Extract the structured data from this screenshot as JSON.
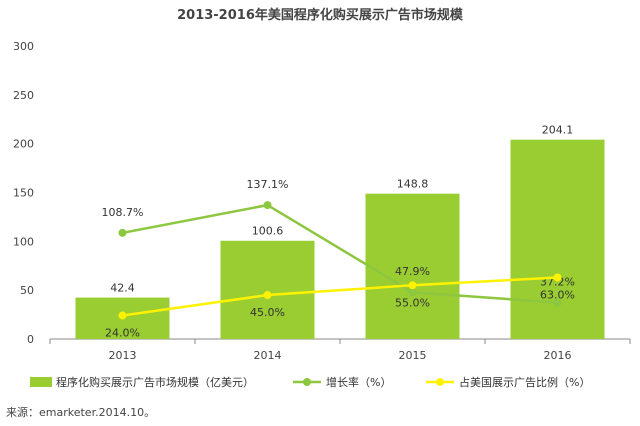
{
  "chart_data": {
    "type": "bar",
    "title": "2013-2016年美国程序化购买展示广告市场规模",
    "categories": [
      "2013",
      "2014",
      "2015",
      "2016"
    ],
    "ylim": [
      0,
      300
    ],
    "yticks": [
      "0",
      "50",
      "100",
      "150",
      "200",
      "250",
      "300"
    ],
    "grid": false,
    "legend_position": "bottom",
    "series": [
      {
        "name": "程序化购买展示广告市场规模（亿美元）",
        "type": "bar",
        "color": "#9ACD32",
        "values": [
          42.4,
          100.6,
          148.8,
          204.1
        ],
        "labels": [
          "42.4",
          "100.6",
          "148.8",
          "204.1"
        ]
      },
      {
        "name": "增长率（%）",
        "type": "line",
        "color": "#8DC63F",
        "values": [
          108.7,
          137.1,
          47.9,
          37.2
        ],
        "labels": [
          "108.7%",
          "137.1%",
          "47.9%",
          "37.2%"
        ]
      },
      {
        "name": "占美国展示广告比例（%）",
        "type": "line",
        "color": "#FFF200",
        "values": [
          24.0,
          45.0,
          55.0,
          63.0
        ],
        "labels": [
          "24.0%",
          "45.0%",
          "55.0%",
          "63.0%"
        ]
      }
    ]
  },
  "source": "来源：emarketer.2014.10。"
}
